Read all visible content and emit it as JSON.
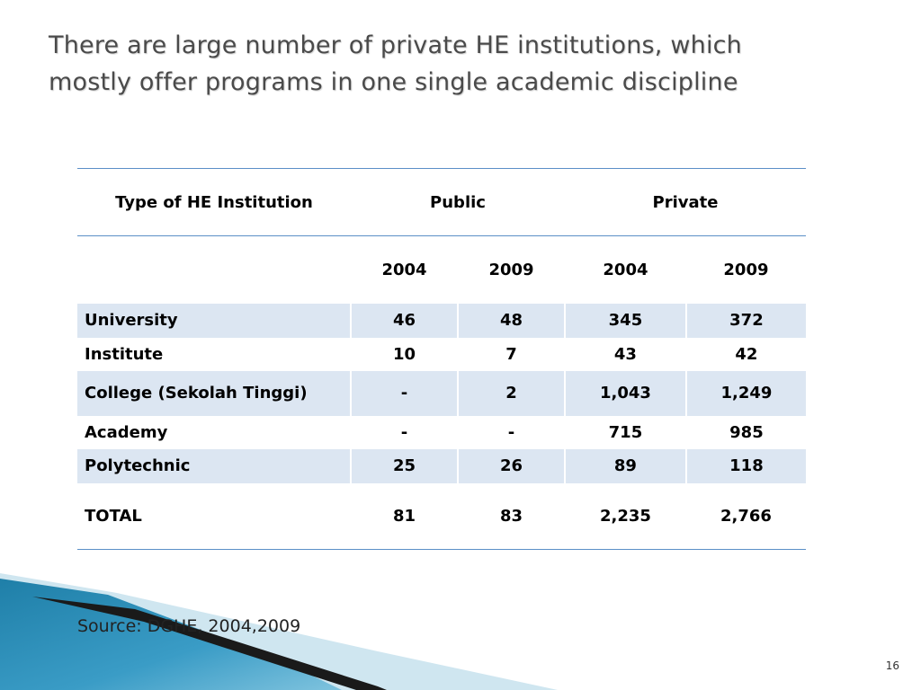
{
  "slide": {
    "title_line1": "There are large number of private HE institutions, which",
    "title_line2": "mostly offer programs in one single academic discipline",
    "source": "Source: DGHE, 2004,2009",
    "page_number": "16"
  },
  "table": {
    "header": {
      "type_label": "Type of HE Institution",
      "public_label": "Public",
      "private_label": "Private"
    },
    "years": [
      "2004",
      "2009",
      "2004",
      "2009"
    ],
    "rows": [
      {
        "label": "University",
        "values": [
          "46",
          "48",
          "345",
          "372"
        ]
      },
      {
        "label": "Institute",
        "values": [
          "10",
          "7",
          "43",
          "42"
        ]
      },
      {
        "label": "College (Sekolah Tinggi)",
        "values": [
          "-",
          "2",
          "1,043",
          "1,249"
        ]
      },
      {
        "label": "Academy",
        "values": [
          "-",
          "-",
          "715",
          "985"
        ]
      },
      {
        "label": "Polytechnic",
        "values": [
          "25",
          "26",
          "89",
          "118"
        ]
      }
    ],
    "total": {
      "label": "TOTAL",
      "values": [
        "81",
        "83",
        "2,235",
        "2,766"
      ]
    }
  },
  "colors": {
    "title_text": "#4a4a4a",
    "rule_blue": "#5b8fc7",
    "shaded_row": "#dce6f2",
    "decor_blue": "#3a9cc6",
    "decor_dark": "#1a1a1a"
  }
}
